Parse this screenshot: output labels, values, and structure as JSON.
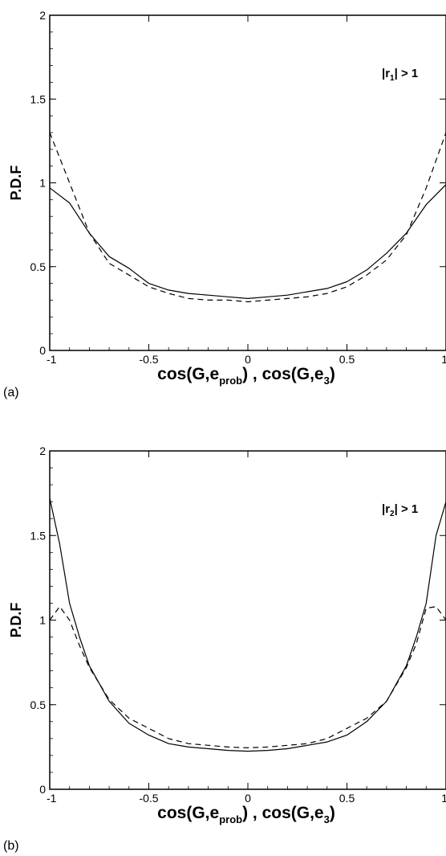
{
  "chart_data": [
    {
      "type": "line",
      "panel_label": "(a)",
      "annotation": {
        "pre": "|r",
        "sub": "1",
        "post": "| > 1"
      },
      "ylabel": "P.D.F",
      "xlabel": {
        "p1": "cos(G,e",
        "s1": "prob",
        "p2": ") , cos(G,e",
        "s2": "3",
        "p3": ")"
      },
      "xlim": [
        -1,
        1
      ],
      "ylim": [
        0,
        2
      ],
      "xticks": [
        "-1",
        "-0.5",
        "0",
        "0.5",
        "1"
      ],
      "yticks": [
        "0",
        "0.5",
        "1",
        "1.5",
        "2"
      ],
      "grid": false,
      "series": [
        {
          "style": "solid",
          "x": [
            -1,
            -0.9,
            -0.8,
            -0.7,
            -0.6,
            -0.5,
            -0.4,
            -0.3,
            -0.2,
            -0.1,
            0,
            0.1,
            0.2,
            0.3,
            0.4,
            0.5,
            0.6,
            0.7,
            0.8,
            0.9,
            1
          ],
          "y": [
            0.97,
            0.88,
            0.7,
            0.56,
            0.49,
            0.4,
            0.36,
            0.34,
            0.33,
            0.32,
            0.31,
            0.32,
            0.33,
            0.35,
            0.37,
            0.41,
            0.48,
            0.58,
            0.7,
            0.87,
            0.99
          ]
        },
        {
          "style": "dashed",
          "x": [
            -1,
            -0.9,
            -0.8,
            -0.7,
            -0.6,
            -0.5,
            -0.4,
            -0.3,
            -0.2,
            -0.1,
            0,
            0.1,
            0.2,
            0.3,
            0.4,
            0.5,
            0.6,
            0.7,
            0.8,
            0.9,
            1
          ],
          "y": [
            1.3,
            1.0,
            0.7,
            0.52,
            0.45,
            0.38,
            0.34,
            0.31,
            0.3,
            0.3,
            0.29,
            0.3,
            0.31,
            0.32,
            0.34,
            0.38,
            0.45,
            0.54,
            0.69,
            0.97,
            1.3
          ]
        }
      ]
    },
    {
      "type": "line",
      "panel_label": "(b)",
      "annotation": {
        "pre": "|r",
        "sub": "2",
        "post": "| > 1"
      },
      "ylabel": "P.D.F",
      "xlabel": {
        "p1": "cos(G,e",
        "s1": "prob",
        "p2": ") , cos(G,e",
        "s2": "3",
        "p3": ")"
      },
      "xlim": [
        -1,
        1
      ],
      "ylim": [
        0,
        2
      ],
      "xticks": [
        "-1",
        "-0.5",
        "0",
        "0.5",
        "1"
      ],
      "yticks": [
        "0",
        "0.5",
        "1",
        "1.5",
        "2"
      ],
      "grid": false,
      "series": [
        {
          "style": "solid",
          "x": [
            -1,
            -0.95,
            -0.9,
            -0.85,
            -0.8,
            -0.7,
            -0.6,
            -0.5,
            -0.4,
            -0.3,
            -0.2,
            -0.1,
            0,
            0.1,
            0.2,
            0.3,
            0.4,
            0.5,
            0.6,
            0.7,
            0.8,
            0.85,
            0.9,
            0.95,
            1
          ],
          "y": [
            1.72,
            1.45,
            1.1,
            0.9,
            0.73,
            0.52,
            0.39,
            0.32,
            0.27,
            0.25,
            0.24,
            0.23,
            0.225,
            0.23,
            0.24,
            0.26,
            0.28,
            0.32,
            0.4,
            0.52,
            0.73,
            0.9,
            1.1,
            1.5,
            1.7
          ]
        },
        {
          "style": "dashed",
          "x": [
            -1,
            -0.95,
            -0.9,
            -0.85,
            -0.8,
            -0.7,
            -0.6,
            -0.5,
            -0.4,
            -0.3,
            -0.2,
            -0.1,
            0,
            0.1,
            0.2,
            0.3,
            0.4,
            0.5,
            0.6,
            0.7,
            0.8,
            0.85,
            0.9,
            0.95,
            1
          ],
          "y": [
            1.0,
            1.08,
            1.0,
            0.85,
            0.72,
            0.53,
            0.42,
            0.36,
            0.3,
            0.27,
            0.26,
            0.25,
            0.245,
            0.25,
            0.26,
            0.27,
            0.3,
            0.36,
            0.42,
            0.52,
            0.72,
            0.86,
            1.07,
            1.08,
            1.0
          ]
        }
      ]
    }
  ]
}
